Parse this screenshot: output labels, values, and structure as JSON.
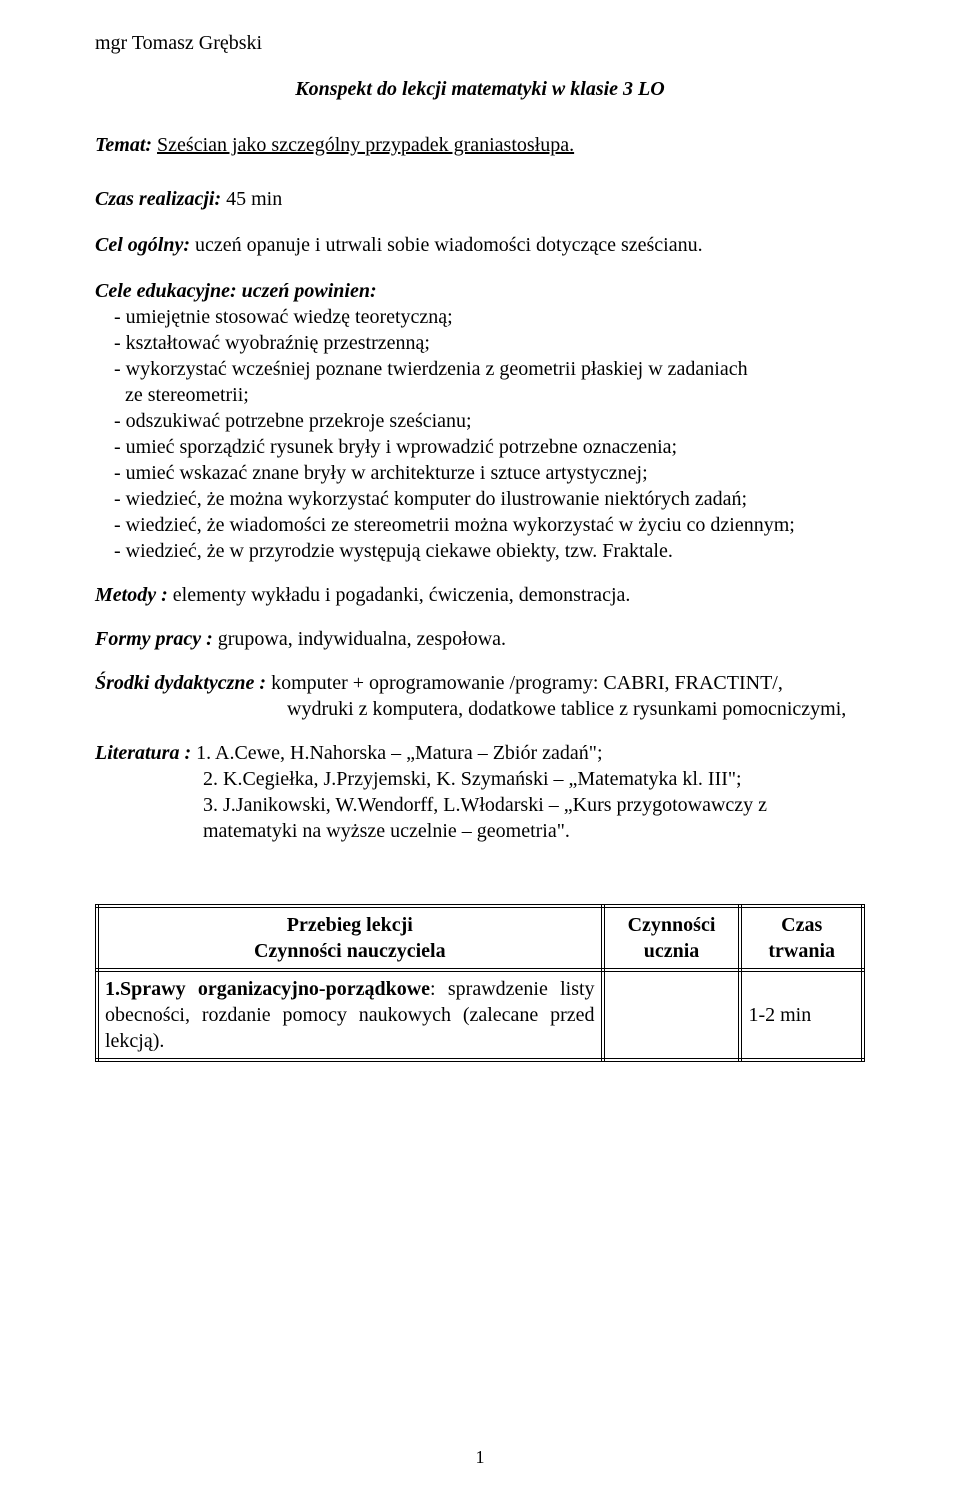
{
  "author": "mgr Tomasz Grębski",
  "title": "Konspekt do lekcji matematyki w klasie 3 LO",
  "topic": {
    "label": "Temat:",
    "text": "Sześcian jako szczególny przypadek graniastosłupa."
  },
  "time": {
    "label": "Czas realizacji:",
    "text": " 45  min"
  },
  "main_goal": {
    "label": "Cel ogólny:",
    "text": " uczeń opanuje i utrwali sobie wiadomości dotyczące sześcianu."
  },
  "edu_goals": {
    "label": "Cele edukacyjne: uczeń powinien:",
    "items": [
      "- umiejętnie stosować wiedzę teoretyczną;",
      "- kształtować wyobraźnię przestrzenną;",
      "- wykorzystać wcześniej poznane twierdzenia z geometrii płaskiej w zadaniach",
      "- odszukiwać potrzebne przekroje sześcianu;",
      "- umieć sporządzić rysunek bryły i wprowadzić potrzebne oznaczenia;",
      "- umieć wskazać znane bryły w architekturze i sztuce artystycznej;",
      "- wiedzieć, że można wykorzystać komputer do ilustrowanie niektórych zadań;",
      "- wiedzieć, że wiadomości ze stereometrii można wykorzystać w życiu co dziennym;",
      "- wiedzieć, że w przyrodzie występują ciekawe obiekty, tzw. Fraktale."
    ],
    "item2_sub": "ze stereometrii;"
  },
  "methods": {
    "label": "Metody :",
    "text": " elementy wykładu i pogadanki, ćwiczenia, demonstracja."
  },
  "forms": {
    "label": "Formy pracy :",
    "text": " grupowa, indywidualna, zespołowa."
  },
  "resources": {
    "label": "Środki dydaktyczne :",
    "line1": " komputer + oprogramowanie /programy: CABRI, FRACTINT/,",
    "line2": "wydruki z komputera, dodatkowe tablice z rysunkami pomocniczymi,"
  },
  "literature": {
    "label": "Literatura :",
    "items": [
      "  1. A.Cewe, H.Nahorska – „Matura – Zbiór zadań\";",
      "2. K.Cegiełka, J.Przyjemski, K. Szymański – „Matematyka kl. III\";",
      "3. J.Janikowski, W.Wendorff, L.Włodarski – „Kurs przygotowawczy  z",
      "matematyki na wyższe uczelnie – geometria\"."
    ]
  },
  "table": {
    "headers": {
      "col1_line1": "Przebieg lekcji",
      "col1_line2": "Czynności nauczyciela",
      "col2_line1": "Czynności",
      "col2_line2": "ucznia",
      "col3_line1": "Czas",
      "col3_line2": "trwania"
    },
    "row1": {
      "bold": "1.Sprawy organizacyjno-porządkowe",
      "rest": ": sprawdzenie listy obecności, rozdanie pomocy naukowych (zalecane przed lekcją).",
      "col2": "",
      "col3": "1-2 min"
    },
    "col_widths": {
      "c1": "66%",
      "c2": "18%",
      "c3": "16%"
    }
  },
  "page_number": "1",
  "colors": {
    "text": "#000000",
    "background": "#ffffff",
    "border": "#000000"
  }
}
